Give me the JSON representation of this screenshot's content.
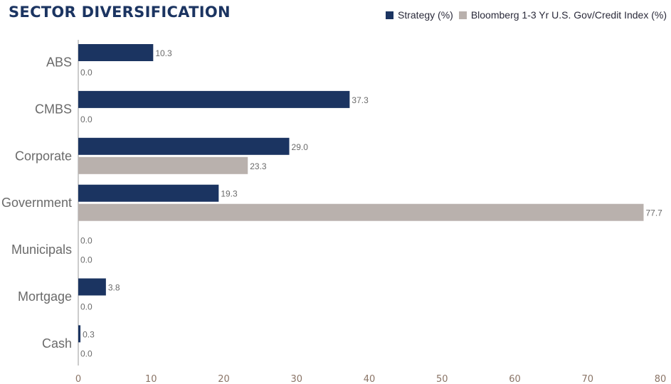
{
  "title": "SECTOR DIVERSIFICATION",
  "legend": {
    "strategy": "Strategy (%)",
    "benchmark": "Bloomberg 1-3 Yr U.S. Gov/Credit Index (%)"
  },
  "colors": {
    "strategy": "#1b3461",
    "benchmark": "#b9b1ad",
    "title": "#1b3461",
    "axis_tick_text": "#8a7466"
  },
  "chart_data": {
    "type": "bar",
    "orientation": "horizontal",
    "categories": [
      "ABS",
      "CMBS",
      "Corporate",
      "Government",
      "Municipals",
      "Mortgage",
      "Cash"
    ],
    "series": [
      {
        "name": "Strategy (%)",
        "values": [
          10.3,
          37.3,
          29.0,
          19.3,
          0.0,
          3.8,
          0.3
        ],
        "labels": [
          "10.3",
          "37.3",
          "29.0",
          "19.3",
          "0.0",
          "3.8",
          "0.3"
        ]
      },
      {
        "name": "Bloomberg 1-3 Yr U.S. Gov/Credit Index (%)",
        "values": [
          0.0,
          0.0,
          23.3,
          77.7,
          0.0,
          0.0,
          0.0
        ],
        "labels": [
          "0.0",
          "0.0",
          "23.3",
          "77.7",
          "0.0",
          "0.0",
          "0.0"
        ]
      }
    ],
    "xlim": [
      0,
      80
    ],
    "xticks": [
      "0",
      "10",
      "20",
      "30",
      "40",
      "50",
      "60",
      "70",
      "80"
    ],
    "grid": false,
    "legend_position": "top-right"
  }
}
